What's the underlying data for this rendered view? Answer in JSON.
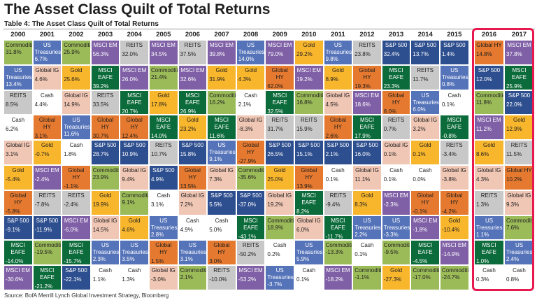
{
  "header": {
    "title": "The Asset Class Quilt of Total Returns",
    "subtitle": "Table 4: The Asset Class Quilt of Total Returns"
  },
  "palette": {
    "Commodities": {
      "fill": "#9bbb59",
      "text": "#1f1f1f"
    },
    "MSCI EM": {
      "fill": "#7f5fa6",
      "text": "#ffffff"
    },
    "US Treasuries": {
      "fill": "#5573b9",
      "text": "#ffffff"
    },
    "Global IG": {
      "fill": "#f0c6b4",
      "text": "#1f1f1f"
    },
    "Gold": {
      "fill": "#f8b62d",
      "text": "#1f1f1f"
    },
    "REITS": {
      "fill": "#c8c8c8",
      "text": "#1f1f1f"
    },
    "Cash": {
      "fill": "#ffffff",
      "text": "#1f1f1f"
    },
    "Global HY": {
      "fill": "#e5792f",
      "text": "#1f1f1f"
    },
    "MSCI EAFE": {
      "fill": "#0c6b3a",
      "text": "#ffffff"
    },
    "S&P 500": {
      "fill": "#2e4f8f",
      "text": "#ffffff"
    }
  },
  "table": {
    "columns": [
      {
        "year": "2000",
        "cells": [
          [
            "Commodities",
            "31.8%"
          ],
          [
            "US Treasuries",
            "13.4%"
          ],
          [
            "REITS",
            "8.5%"
          ],
          [
            "Cash",
            "6.2%"
          ],
          [
            "Global IG",
            "3.1%"
          ],
          [
            "Gold",
            "-5.4%"
          ],
          [
            "Global HY",
            "-5.8%"
          ],
          [
            "S&P 500",
            "-9.1%"
          ],
          [
            "MSCI EAFE",
            "-14.0%"
          ],
          [
            "MSCI EM",
            "-30.6%"
          ]
        ]
      },
      {
        "year": "2001",
        "cells": [
          [
            "US Treasuries",
            "6.7%"
          ],
          [
            "Global IG",
            "4.6%"
          ],
          [
            "Cash",
            "4.4%"
          ],
          [
            "Global HY",
            "3.1%"
          ],
          [
            "Gold",
            "-0.7%"
          ],
          [
            "MSCI EM",
            "-2.4%"
          ],
          [
            "REITS",
            "-7.8%"
          ],
          [
            "S&P 500",
            "-11.9%"
          ],
          [
            "Commodities",
            "-19.5%"
          ],
          [
            "MSCI EAFE",
            "-21.2%"
          ]
        ]
      },
      {
        "year": "2002",
        "cells": [
          [
            "Commodities",
            "25.9%"
          ],
          [
            "Gold",
            "25.6%"
          ],
          [
            "Global IG",
            "14.9%"
          ],
          [
            "US Treasuries",
            "11.6%"
          ],
          [
            "Cash",
            "1.8%"
          ],
          [
            "Global HY",
            "-1.1%"
          ],
          [
            "REITS",
            "-2.4%"
          ],
          [
            "MSCI EM",
            "-6.0%"
          ],
          [
            "MSCI EAFE",
            "-15.7%"
          ],
          [
            "S&P 500",
            "-22.1%"
          ]
        ]
      },
      {
        "year": "2003",
        "cells": [
          [
            "MSCI EM",
            "56.3%"
          ],
          [
            "MSCI EAFE",
            "39.2%"
          ],
          [
            "REITS",
            "33.5%"
          ],
          [
            "Global HY",
            "30.7%"
          ],
          [
            "S&P 500",
            "28.7%"
          ],
          [
            "Commodities",
            "23.9%"
          ],
          [
            "Gold",
            "19.9%"
          ],
          [
            "Global IG",
            "14.5%"
          ],
          [
            "US Treasuries",
            "2.3%"
          ],
          [
            "Cash",
            "1.1%"
          ]
        ]
      },
      {
        "year": "2004",
        "cells": [
          [
            "REITS",
            "32.0%"
          ],
          [
            "MSCI EM",
            "26.0%"
          ],
          [
            "MSCI EAFE",
            "20.7%"
          ],
          [
            "Global HY",
            "12.4%"
          ],
          [
            "S&P 500",
            "10.9%"
          ],
          [
            "Global IG",
            "9.4%"
          ],
          [
            "Commodities",
            "9.1%"
          ],
          [
            "Gold",
            "4.6%"
          ],
          [
            "US Treasuries",
            "3.5%"
          ],
          [
            "Cash",
            "1.3%"
          ]
        ]
      },
      {
        "year": "2005",
        "cells": [
          [
            "MSCI EM",
            "34.5%"
          ],
          [
            "Commodities",
            "21.4%"
          ],
          [
            "Gold",
            "17.8%"
          ],
          [
            "MSCI EAFE",
            "14.0%"
          ],
          [
            "REITS",
            "10.7%"
          ],
          [
            "S&P 500",
            "4.9%"
          ],
          [
            "Cash",
            "3.1%"
          ],
          [
            "US Treasuries",
            "2.8%"
          ],
          [
            "Global HY",
            "1.5%"
          ],
          [
            "Global IG",
            "-3.0%"
          ]
        ]
      },
      {
        "year": "2006",
        "cells": [
          [
            "REITS",
            "37.5%"
          ],
          [
            "MSCI EM",
            "32.6%"
          ],
          [
            "MSCI EAFE",
            "26.9%"
          ],
          [
            "Gold",
            "23.2%"
          ],
          [
            "S&P 500",
            "15.8%"
          ],
          [
            "Global HY",
            "13.5%"
          ],
          [
            "Global IG",
            "7.2%"
          ],
          [
            "Cash",
            "4.9%"
          ],
          [
            "US Treasuries",
            "3.1%"
          ],
          [
            "Commodities",
            "2.1%"
          ]
        ]
      },
      {
        "year": "2007",
        "cells": [
          [
            "MSCI EM",
            "39.8%"
          ],
          [
            "Gold",
            "31.9%"
          ],
          [
            "Commodities",
            "16.2%"
          ],
          [
            "MSCI EAFE",
            "11.6%"
          ],
          [
            "US Treasuries",
            "9.1%"
          ],
          [
            "Global IG",
            "7.3%"
          ],
          [
            "S&P 500",
            "5.5%"
          ],
          [
            "Cash",
            "5.0%"
          ],
          [
            "Global HY",
            "3.0%"
          ],
          [
            "REITS",
            "-10.0%"
          ]
        ]
      },
      {
        "year": "2008",
        "cells": [
          [
            "US Treasuries",
            "14.0%"
          ],
          [
            "Gold",
            "4.3%"
          ],
          [
            "Cash",
            "2.1%"
          ],
          [
            "Global IG",
            "-8.3%"
          ],
          [
            "Global HY",
            "-27.9%"
          ],
          [
            "Commodities",
            "-35.6%"
          ],
          [
            "S&P 500",
            "-37.0%"
          ],
          [
            "MSCI EAFE",
            "-43.1%"
          ],
          [
            "REITS",
            "-50.2%"
          ],
          [
            "MSCI EM",
            "-53.2%"
          ]
        ]
      },
      {
        "year": "2009",
        "cells": [
          [
            "MSCI EM",
            "79.0%"
          ],
          [
            "Global HY",
            "62.0%"
          ],
          [
            "MSCI EAFE",
            "32.5%"
          ],
          [
            "REITS",
            "31.7%"
          ],
          [
            "S&P 500",
            "26.5%"
          ],
          [
            "Gold",
            "25.0%"
          ],
          [
            "Global IG",
            "19.2%"
          ],
          [
            "Commodities",
            "18.9%"
          ],
          [
            "Cash",
            "0.2%"
          ],
          [
            "US Treasuries",
            "-3.7%"
          ]
        ]
      },
      {
        "year": "2010",
        "cells": [
          [
            "Gold",
            "29.2%"
          ],
          [
            "MSCI EM",
            "19.2%"
          ],
          [
            "Commodities",
            "16.8%"
          ],
          [
            "REITS",
            "15.9%"
          ],
          [
            "S&P 500",
            "15.1%"
          ],
          [
            "Global HY",
            "13.9%"
          ],
          [
            "MSCI EAFE",
            "8.2%"
          ],
          [
            "Global IG",
            "6.0%"
          ],
          [
            "US Treasuries",
            "5.9%"
          ],
          [
            "Cash",
            "0.1%"
          ]
        ]
      },
      {
        "year": "2011",
        "cells": [
          [
            "US Treasuries",
            "9.8%"
          ],
          [
            "Gold",
            "8.9%"
          ],
          [
            "Global IG",
            "4.5%"
          ],
          [
            "Global HY",
            "2.6%"
          ],
          [
            "S&P 500",
            "2.1%"
          ],
          [
            "Cash",
            "0.1%"
          ],
          [
            "REITS",
            "-9.4%"
          ],
          [
            "MSCI EAFE",
            "-11.7%"
          ],
          [
            "Commodities",
            "-13.3%"
          ],
          [
            "MSCI EM",
            "-18.2%"
          ]
        ]
      },
      {
        "year": "2012",
        "cells": [
          [
            "REITS",
            "23.8%"
          ],
          [
            "Global HY",
            "19.3%"
          ],
          [
            "MSCI EM",
            "18.6%"
          ],
          [
            "MSCI EAFE",
            "17.9%"
          ],
          [
            "S&P 500",
            "16.0%"
          ],
          [
            "Global IG",
            "11.1%"
          ],
          [
            "Gold",
            "8.3%"
          ],
          [
            "US Treasuries",
            "2.2%"
          ],
          [
            "Cash",
            "0.1%"
          ],
          [
            "Commodities",
            "-1.1%"
          ]
        ]
      },
      {
        "year": "2013",
        "cells": [
          [
            "S&P 500",
            "32.4%"
          ],
          [
            "MSCI EAFE",
            "23.3%"
          ],
          [
            "Global HY",
            "8.0%"
          ],
          [
            "REITS",
            "0.7%"
          ],
          [
            "Global IG",
            "0.1%"
          ],
          [
            "Cash",
            "0.1%"
          ],
          [
            "MSCI EM",
            "-2.3%"
          ],
          [
            "US Treasuries",
            "-3.3%"
          ],
          [
            "Commodities",
            "-9.5%"
          ],
          [
            "Gold",
            "-27.3%"
          ]
        ]
      },
      {
        "year": "2014",
        "cells": [
          [
            "S&P 500",
            "13.7%"
          ],
          [
            "REITS",
            "11.7%"
          ],
          [
            "US Treasuries",
            "6.0%"
          ],
          [
            "Global IG",
            "3.2%"
          ],
          [
            "Gold",
            "0.1%"
          ],
          [
            "Cash",
            "0.0%"
          ],
          [
            "Global HY",
            "-0.1%"
          ],
          [
            "MSCI EM",
            "-1.8%"
          ],
          [
            "MSCI EAFE",
            "-4.5%"
          ],
          [
            "Commodities",
            "-17.0%"
          ]
        ]
      },
      {
        "year": "2015",
        "cells": [
          [
            "S&P 500",
            "1.4%"
          ],
          [
            "US Treasuries",
            "0.8%"
          ],
          [
            "Cash",
            "0.1%"
          ],
          [
            "MSCI EAFE",
            "-0.8%"
          ],
          [
            "REITS",
            "-3.4%"
          ],
          [
            "Global IG",
            "-3.8%"
          ],
          [
            "Global HY",
            "-4.2%"
          ],
          [
            "Gold",
            "-10.4%"
          ],
          [
            "MSCI EM",
            "-14.9%"
          ],
          [
            "Commodities",
            "-24.7%"
          ]
        ]
      },
      {
        "year": "2016",
        "cells": [
          [
            "Global HY",
            "14.8%"
          ],
          [
            "S&P 500",
            "12.0%"
          ],
          [
            "Commodities",
            "11.8%"
          ],
          [
            "MSCI EM",
            "11.2%"
          ],
          [
            "Gold",
            "8.6%"
          ],
          [
            "Global IG",
            "4.3%"
          ],
          [
            "REITS",
            "1.3%"
          ],
          [
            "US Treasuries",
            "1.1%"
          ],
          [
            "MSCI EAFE",
            "1.0%"
          ],
          [
            "Cash",
            "0.3%"
          ]
        ]
      },
      {
        "year": "2017",
        "cells": [
          [
            "MSCI EM",
            "37.8%"
          ],
          [
            "MSCI EAFE",
            "25.9%"
          ],
          [
            "S&P 500",
            "22.0%"
          ],
          [
            "Gold",
            "12.9%"
          ],
          [
            "REITS",
            "11.5%"
          ],
          [
            "Global HY",
            "10.2%"
          ],
          [
            "Global IG",
            "9.3%"
          ],
          [
            "Commodities",
            "7.6%"
          ],
          [
            "US Treasuries",
            "2.4%"
          ],
          [
            "Cash",
            "0.8%"
          ]
        ]
      }
    ]
  },
  "footer": {
    "source": "Source: BofA Merrill Lynch Global Investment Strategy, Bloomberg"
  }
}
